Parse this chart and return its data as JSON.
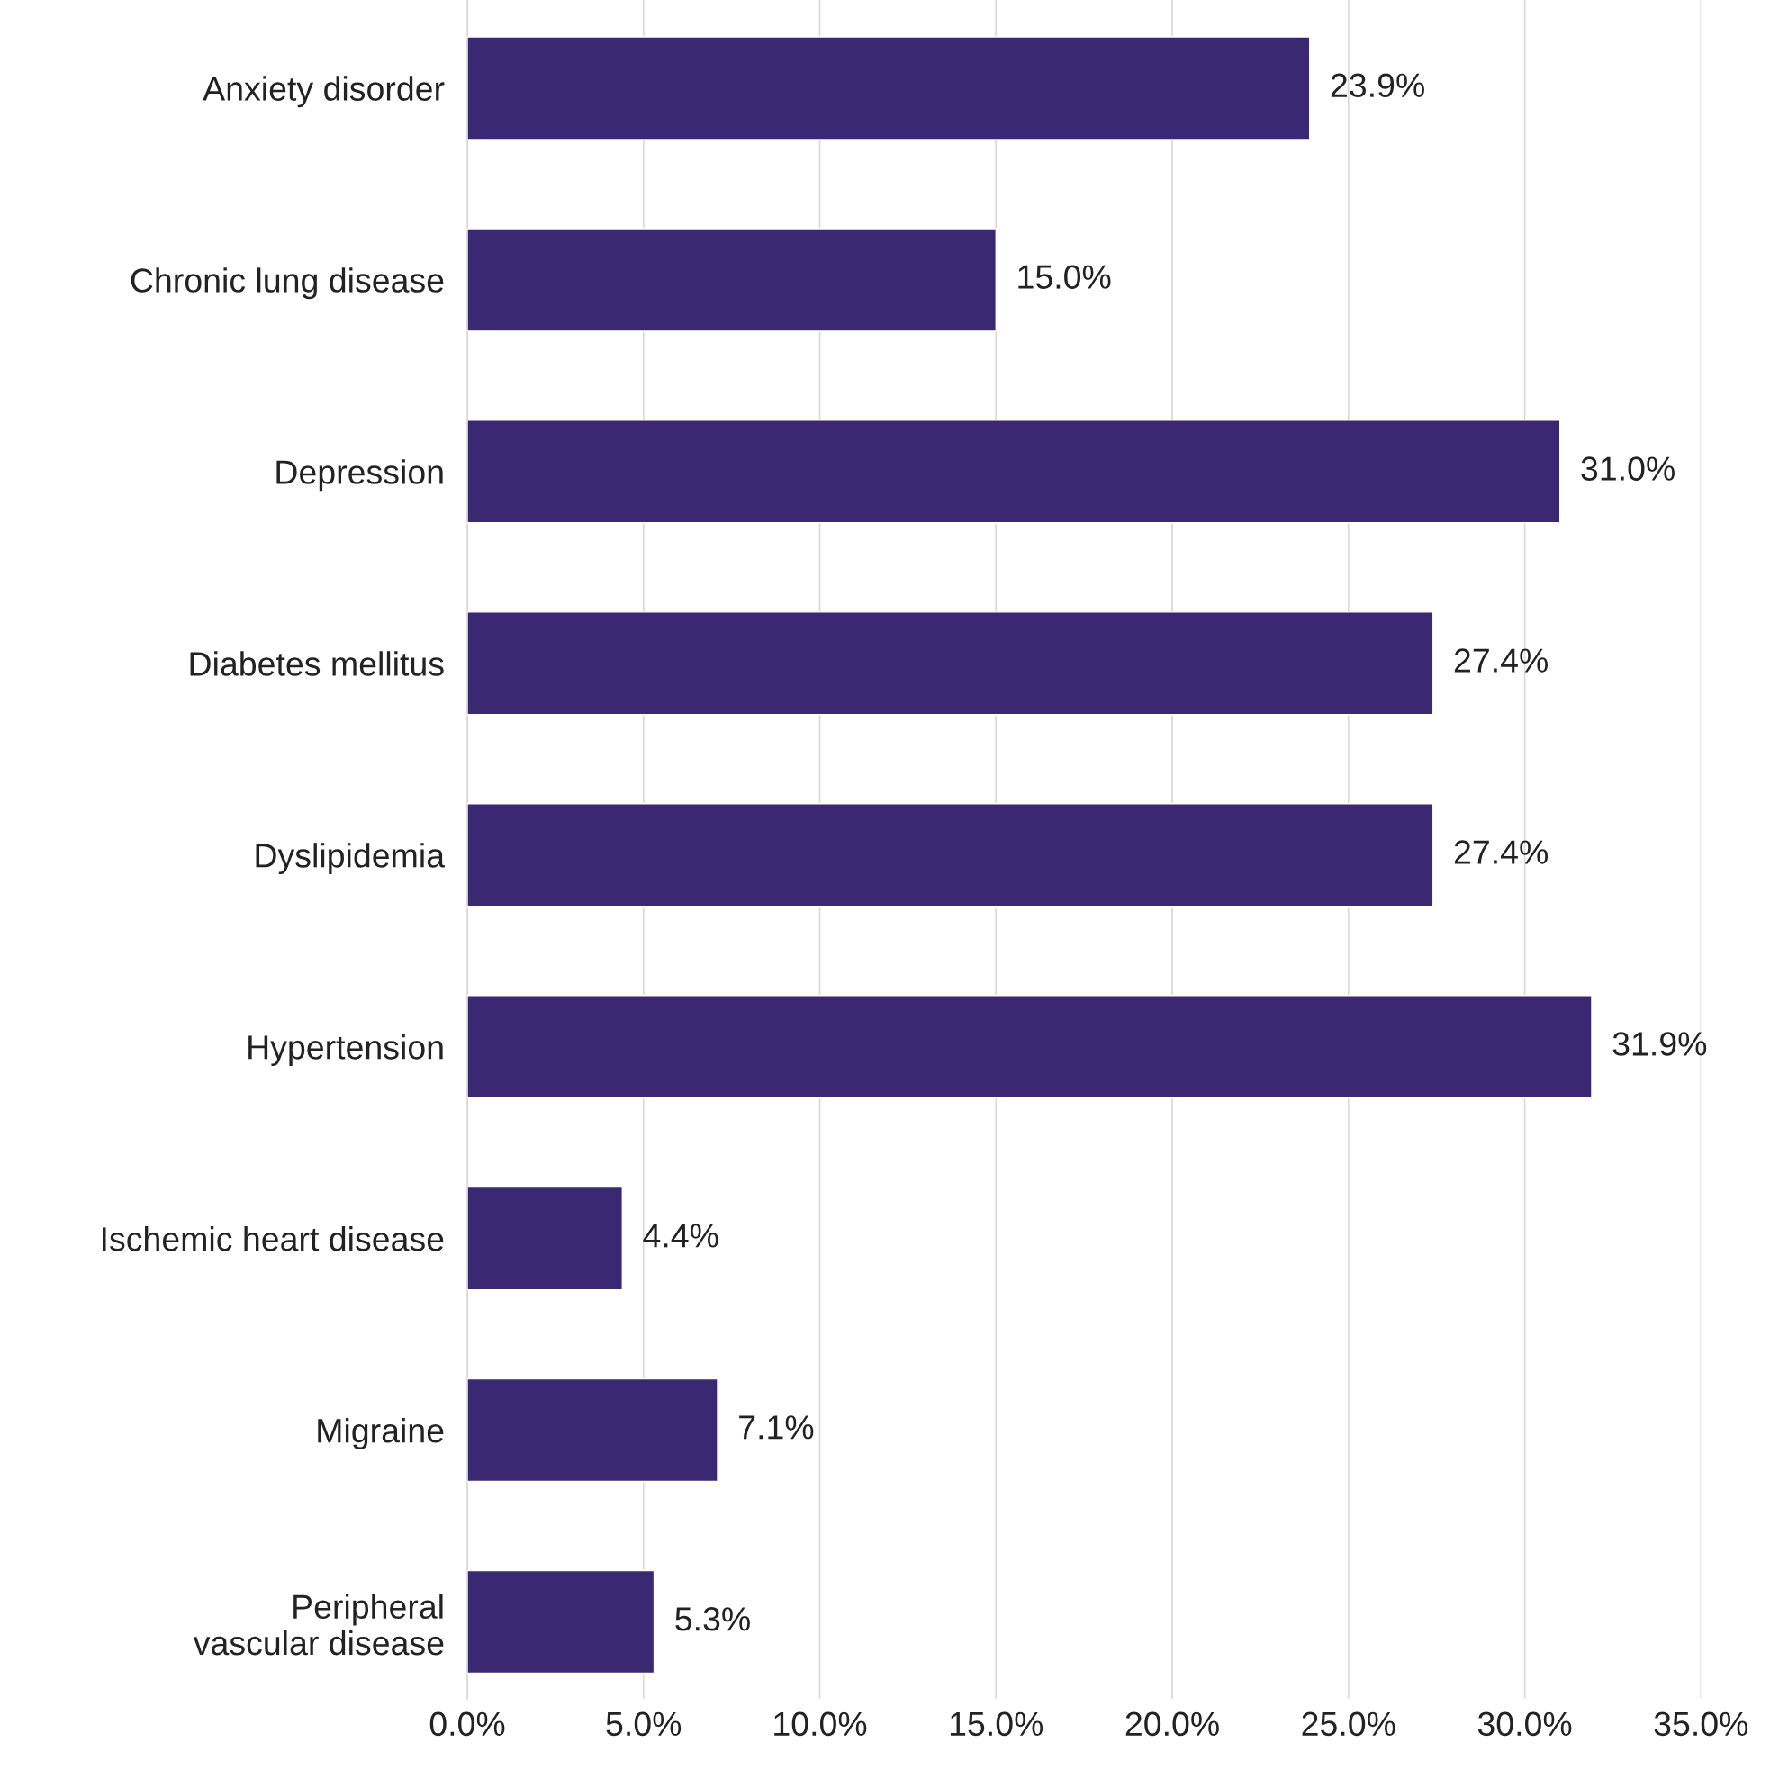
{
  "chart_data": {
    "type": "bar",
    "orientation": "horizontal",
    "categories": [
      "Anxiety disorder",
      "Chronic lung disease",
      "Depression",
      "Diabetes mellitus",
      "Dyslipidemia",
      "Hypertension",
      "Ischemic heart disease",
      "Migraine",
      "Peripheral\nvascular disease"
    ],
    "values": [
      23.9,
      15.0,
      31.0,
      27.4,
      27.4,
      31.9,
      4.4,
      7.1,
      5.3
    ],
    "value_labels": [
      "23.9%",
      "15.0%",
      "31.0%",
      "27.4%",
      "27.4%",
      "31.9%",
      "4.4%",
      "7.1%",
      "5.3%"
    ],
    "color": "#3b2872",
    "xlim": [
      0,
      35
    ],
    "xticks": [
      {
        "value": 0,
        "label": "0.0%"
      },
      {
        "value": 5,
        "label": "5.0%"
      },
      {
        "value": 10,
        "label": "10.0%"
      },
      {
        "value": 15,
        "label": "15.0%"
      },
      {
        "value": 20,
        "label": "20.0%"
      },
      {
        "value": 25,
        "label": "25.0%"
      },
      {
        "value": 30,
        "label": "30.0%"
      },
      {
        "value": 35,
        "label": "35.0%"
      }
    ],
    "grid": "x",
    "legend": false
  }
}
